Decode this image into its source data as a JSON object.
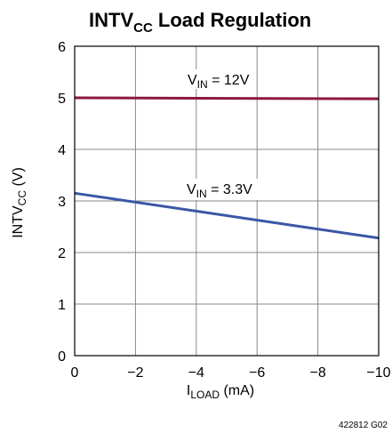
{
  "chart_data": {
    "type": "line",
    "title": {
      "main": "INTV",
      "sub": "CC",
      "rest": " Load Regulation"
    },
    "xlabel": {
      "main": "I",
      "sub": "LOAD",
      "rest": " (mA)"
    },
    "ylabel": {
      "main": "INTV",
      "sub": "CC",
      "rest": " (V)"
    },
    "xlim": [
      0,
      -10
    ],
    "ylim": [
      0,
      6
    ],
    "x_ticks": [
      0,
      -2,
      -4,
      -6,
      -8,
      -10
    ],
    "x_tick_labels": [
      "0",
      "−2",
      "−4",
      "−6",
      "−8",
      "−10"
    ],
    "y_ticks": [
      0,
      1,
      2,
      3,
      4,
      5,
      6
    ],
    "y_tick_labels": [
      "0",
      "1",
      "2",
      "3",
      "4",
      "5",
      "6"
    ],
    "grid": true,
    "series": [
      {
        "name": "V_IN = 12V",
        "label": {
          "main": "V",
          "sub": "IN",
          "rest": " = 12V"
        },
        "color": "#8B1A3C",
        "x": [
          0,
          -10
        ],
        "y": [
          5.0,
          4.98
        ]
      },
      {
        "name": "V_IN = 3.3V",
        "label": {
          "main": "V",
          "sub": "IN",
          "rest": " = 3.3V"
        },
        "color": "#3A57A6",
        "x": [
          0,
          -10
        ],
        "y": [
          3.15,
          2.28
        ]
      }
    ],
    "figure_id": "422812 G02"
  }
}
